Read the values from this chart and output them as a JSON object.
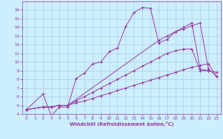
{
  "bg_color": "#cceeff",
  "line_color": "#993399",
  "grid_color": "#aaccdd",
  "xlabel": "Windchill (Refroidissement éolien,°C)",
  "xlim": [
    -0.5,
    23.5
  ],
  "ylim": [
    4,
    17
  ],
  "xticks": [
    0,
    1,
    2,
    3,
    4,
    5,
    6,
    7,
    8,
    9,
    10,
    11,
    12,
    13,
    14,
    15,
    16,
    17,
    18,
    19,
    20,
    21,
    22,
    23
  ],
  "yticks": [
    4,
    5,
    6,
    7,
    8,
    9,
    10,
    11,
    12,
    13,
    14,
    15,
    16
  ],
  "lines": [
    {
      "x": [
        0,
        2,
        3,
        4,
        5,
        6,
        7,
        8,
        9,
        10,
        11,
        12,
        13,
        14,
        15,
        16,
        17,
        18,
        19,
        20,
        21,
        22
      ],
      "y": [
        4.5,
        6.3,
        3.8,
        4.8,
        4.8,
        8.1,
        8.7,
        9.8,
        10.0,
        11.2,
        11.6,
        14.1,
        15.7,
        16.3,
        16.2,
        12.2,
        12.6,
        13.5,
        14.0,
        14.5,
        9.2,
        9.0
      ]
    },
    {
      "x": [
        0,
        2,
        3,
        4,
        5,
        6,
        7,
        8,
        9,
        10,
        11,
        12,
        13,
        14,
        15,
        16,
        17,
        18,
        19,
        20,
        21,
        22,
        23
      ],
      "y": [
        4.5,
        4.8,
        4.8,
        5.0,
        5.0,
        5.3,
        5.5,
        5.8,
        6.1,
        6.4,
        6.7,
        7.0,
        7.3,
        7.6,
        7.9,
        8.2,
        8.5,
        8.8,
        9.1,
        9.4,
        9.6,
        9.8,
        8.3
      ]
    },
    {
      "x": [
        0,
        2,
        3,
        4,
        5,
        6,
        7,
        8,
        9,
        10,
        11,
        12,
        13,
        14,
        15,
        16,
        17,
        18,
        19,
        20,
        21,
        22,
        23
      ],
      "y": [
        4.5,
        4.8,
        4.8,
        5.0,
        5.0,
        5.5,
        6.0,
        6.5,
        7.0,
        7.5,
        8.0,
        8.5,
        9.0,
        9.5,
        10.0,
        10.5,
        11.0,
        11.3,
        11.5,
        11.5,
        9.0,
        9.0,
        8.8
      ]
    },
    {
      "x": [
        0,
        2,
        3,
        4,
        5,
        16,
        17,
        18,
        19,
        20,
        21,
        22,
        23
      ],
      "y": [
        4.5,
        4.8,
        4.8,
        5.0,
        5.0,
        12.5,
        13.0,
        13.5,
        13.8,
        14.2,
        14.5,
        9.2,
        8.3
      ]
    }
  ]
}
